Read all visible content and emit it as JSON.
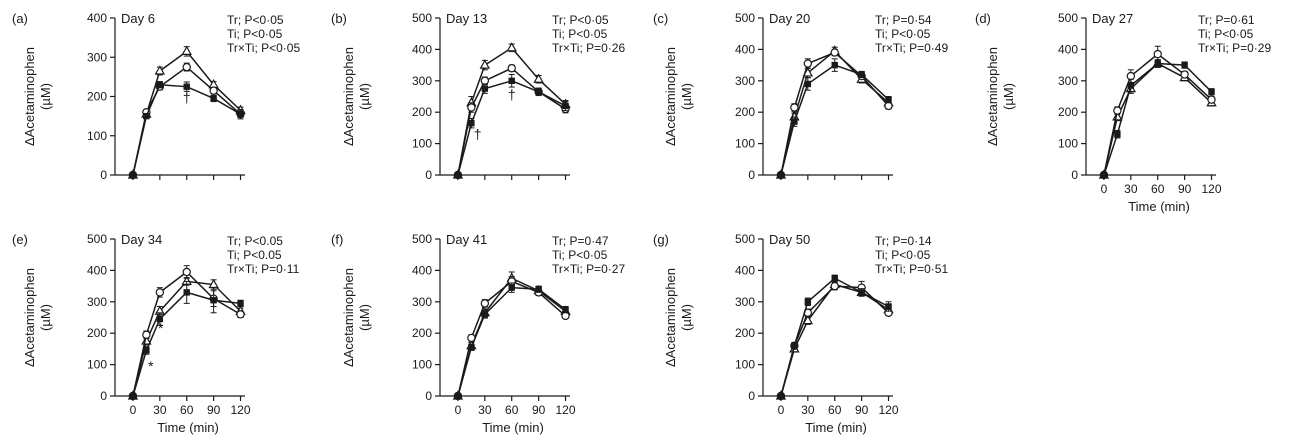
{
  "chart_data": [
    {
      "type": "line",
      "panel_label": "(a)",
      "title": "Day 6",
      "ylabel": "ΔAcetaminophen",
      "yunit": "(µM)",
      "xlabel": "",
      "ylim": [
        0,
        400
      ],
      "yticks": [
        0,
        100,
        200,
        300,
        400
      ],
      "xlim": [
        -20,
        125
      ],
      "xticks": [],
      "x": [
        0,
        15,
        30,
        60,
        90,
        120
      ],
      "stats": [
        "Tr; P<0·05",
        "Ti; P<0·05",
        "Tr×Ti; P<0·05"
      ],
      "annotations": [
        {
          "text": "†",
          "x": 60,
          "y": 185
        }
      ],
      "series": [
        {
          "marker": "triangle-open",
          "values": [
            0,
            155,
            265,
            315,
            230,
            165
          ],
          "errors": [
            0,
            6,
            10,
            12,
            8,
            8
          ]
        },
        {
          "marker": "circle-open",
          "values": [
            0,
            160,
            225,
            275,
            215,
            155
          ],
          "errors": [
            0,
            6,
            8,
            10,
            8,
            8
          ]
        },
        {
          "marker": "square-filled",
          "values": [
            0,
            150,
            230,
            225,
            195,
            155
          ],
          "errors": [
            0,
            6,
            8,
            12,
            8,
            12
          ]
        }
      ]
    },
    {
      "type": "line",
      "panel_label": "(b)",
      "title": "Day 13",
      "ylabel": "ΔAcetaminophen",
      "yunit": "(µM)",
      "xlabel": "",
      "ylim": [
        0,
        500
      ],
      "yticks": [
        0,
        100,
        200,
        300,
        400,
        500
      ],
      "xlim": [
        -20,
        125
      ],
      "xticks": [],
      "x": [
        0,
        15,
        30,
        60,
        90,
        120
      ],
      "stats": [
        "Tr; P<0·05",
        "Ti; P<0·05",
        "Tr×Ti; P=0·26"
      ],
      "annotations": [
        {
          "text": "†",
          "x": 60,
          "y": 240
        },
        {
          "text": "†",
          "x": 22,
          "y": 115
        }
      ],
      "series": [
        {
          "marker": "triangle-open",
          "values": [
            0,
            230,
            350,
            405,
            305,
            225
          ],
          "errors": [
            0,
            20,
            15,
            12,
            12,
            12
          ]
        },
        {
          "marker": "circle-open",
          "values": [
            0,
            215,
            300,
            340,
            265,
            210
          ],
          "errors": [
            0,
            15,
            12,
            10,
            10,
            12
          ]
        },
        {
          "marker": "square-filled",
          "values": [
            0,
            165,
            275,
            300,
            265,
            220
          ],
          "errors": [
            0,
            15,
            15,
            20,
            12,
            15
          ]
        }
      ]
    },
    {
      "type": "line",
      "panel_label": "(c)",
      "title": "Day 20",
      "ylabel": "ΔAcetaminophen",
      "yunit": "(µM)",
      "xlabel": "",
      "ylim": [
        0,
        500
      ],
      "yticks": [
        0,
        100,
        200,
        300,
        400,
        500
      ],
      "xlim": [
        -20,
        125
      ],
      "xticks": [],
      "x": [
        0,
        15,
        30,
        60,
        90,
        120
      ],
      "stats": [
        "Tr; P=0·54",
        "Ti; P<0·05",
        "Tr×Ti; P=0·49"
      ],
      "annotations": [],
      "series": [
        {
          "marker": "triangle-open",
          "values": [
            0,
            185,
            325,
            395,
            305,
            230
          ],
          "errors": [
            0,
            12,
            15,
            12,
            12,
            12
          ]
        },
        {
          "marker": "circle-open",
          "values": [
            0,
            215,
            355,
            390,
            315,
            220
          ],
          "errors": [
            0,
            12,
            15,
            10,
            10,
            10
          ]
        },
        {
          "marker": "square-filled",
          "values": [
            0,
            170,
            290,
            350,
            320,
            240
          ],
          "errors": [
            0,
            15,
            20,
            20,
            10,
            10
          ]
        }
      ]
    },
    {
      "type": "line",
      "panel_label": "(d)",
      "title": "Day 27",
      "ylabel": "ΔAcetaminophen",
      "yunit": "(µM)",
      "xlabel": "Time (min)",
      "ylim": [
        0,
        500
      ],
      "yticks": [
        0,
        100,
        200,
        300,
        400,
        500
      ],
      "xlim": [
        -20,
        125
      ],
      "xticks": [
        0,
        30,
        60,
        90,
        120
      ],
      "x": [
        0,
        15,
        30,
        60,
        90,
        120
      ],
      "stats": [
        "Tr; P=0·61",
        "Ti; P<0·05",
        "Tr×Ti; P=0·29"
      ],
      "annotations": [],
      "series": [
        {
          "marker": "triangle-open",
          "values": [
            0,
            185,
            275,
            355,
            310,
            230
          ],
          "errors": [
            0,
            12,
            15,
            12,
            10,
            10
          ]
        },
        {
          "marker": "circle-open",
          "values": [
            0,
            205,
            315,
            385,
            320,
            240
          ],
          "errors": [
            0,
            12,
            20,
            25,
            10,
            10
          ]
        },
        {
          "marker": "square-filled",
          "values": [
            0,
            130,
            285,
            355,
            350,
            265
          ],
          "errors": [
            0,
            12,
            20,
            12,
            10,
            10
          ]
        }
      ]
    },
    {
      "type": "line",
      "panel_label": "(e)",
      "title": "Day 34",
      "ylabel": "ΔAcetaminophen",
      "yunit": "(µM)",
      "xlabel": "Time (min)",
      "ylim": [
        0,
        500
      ],
      "yticks": [
        0,
        100,
        200,
        300,
        400,
        500
      ],
      "xlim": [
        -20,
        125
      ],
      "xticks": [
        0,
        30,
        60,
        90,
        120
      ],
      "x": [
        0,
        15,
        30,
        60,
        90,
        120
      ],
      "stats": [
        "Tr; P<0.05",
        "Ti; P<0.05",
        "Tr×Ti; P=0·11"
      ],
      "annotations": [
        {
          "text": "*",
          "x": 31,
          "y": 200
        },
        {
          "text": "*",
          "x": 20,
          "y": 80
        }
      ],
      "series": [
        {
          "marker": "triangle-open",
          "values": [
            0,
            175,
            270,
            365,
            355,
            270
          ],
          "errors": [
            0,
            12,
            15,
            12,
            15,
            10
          ]
        },
        {
          "marker": "circle-open",
          "values": [
            0,
            195,
            330,
            395,
            310,
            260
          ],
          "errors": [
            0,
            12,
            15,
            20,
            25,
            10
          ]
        },
        {
          "marker": "square-filled",
          "values": [
            0,
            145,
            245,
            330,
            305,
            295
          ],
          "errors": [
            0,
            12,
            20,
            35,
            40,
            10
          ]
        }
      ]
    },
    {
      "type": "line",
      "panel_label": "(f)",
      "title": "Day 41",
      "ylabel": "ΔAcetaminophen",
      "yunit": "(µM)",
      "xlabel": "Time (min)",
      "ylim": [
        0,
        500
      ],
      "yticks": [
        0,
        100,
        200,
        300,
        400,
        500
      ],
      "xlim": [
        -20,
        125
      ],
      "xticks": [
        0,
        30,
        60,
        90,
        120
      ],
      "x": [
        0,
        15,
        30,
        60,
        90,
        120
      ],
      "stats": [
        "Tr; P=0·47",
        "Ti; P<0·05",
        "Tr×Ti; P=0·27"
      ],
      "annotations": [],
      "series": [
        {
          "marker": "triangle-open",
          "values": [
            0,
            160,
            265,
            375,
            335,
            270
          ],
          "errors": [
            0,
            10,
            12,
            20,
            10,
            10
          ]
        },
        {
          "marker": "circle-open",
          "values": [
            0,
            185,
            295,
            365,
            330,
            255
          ],
          "errors": [
            0,
            10,
            12,
            15,
            10,
            8
          ]
        },
        {
          "marker": "square-filled",
          "values": [
            0,
            155,
            260,
            345,
            340,
            275
          ],
          "errors": [
            0,
            10,
            12,
            15,
            10,
            10
          ]
        }
      ]
    },
    {
      "type": "line",
      "panel_label": "(g)",
      "title": "Day 50",
      "ylabel": "ΔAcetaminophen",
      "yunit": "(µM)",
      "xlabel": "Time (min)",
      "ylim": [
        0,
        500
      ],
      "yticks": [
        0,
        100,
        200,
        300,
        400,
        500
      ],
      "xlim": [
        -20,
        125
      ],
      "xticks": [
        0,
        30,
        60,
        90,
        120
      ],
      "x": [
        0,
        15,
        30,
        60,
        90,
        120
      ],
      "stats": [
        "Tr; P=0·14",
        "Ti; P<0·05",
        "Tr×Ti; P=0·51"
      ],
      "annotations": [],
      "series": [
        {
          "marker": "triangle-open",
          "values": [
            0,
            150,
            240,
            355,
            330,
            275
          ],
          "errors": [
            0,
            10,
            12,
            15,
            12,
            10
          ]
        },
        {
          "marker": "circle-open",
          "values": [
            0,
            160,
            265,
            350,
            345,
            265
          ],
          "errors": [
            0,
            10,
            12,
            12,
            20,
            8
          ]
        },
        {
          "marker": "square-filled",
          "values": [
            0,
            160,
            300,
            375,
            330,
            285
          ],
          "errors": [
            0,
            10,
            12,
            10,
            12,
            15
          ]
        }
      ]
    }
  ]
}
